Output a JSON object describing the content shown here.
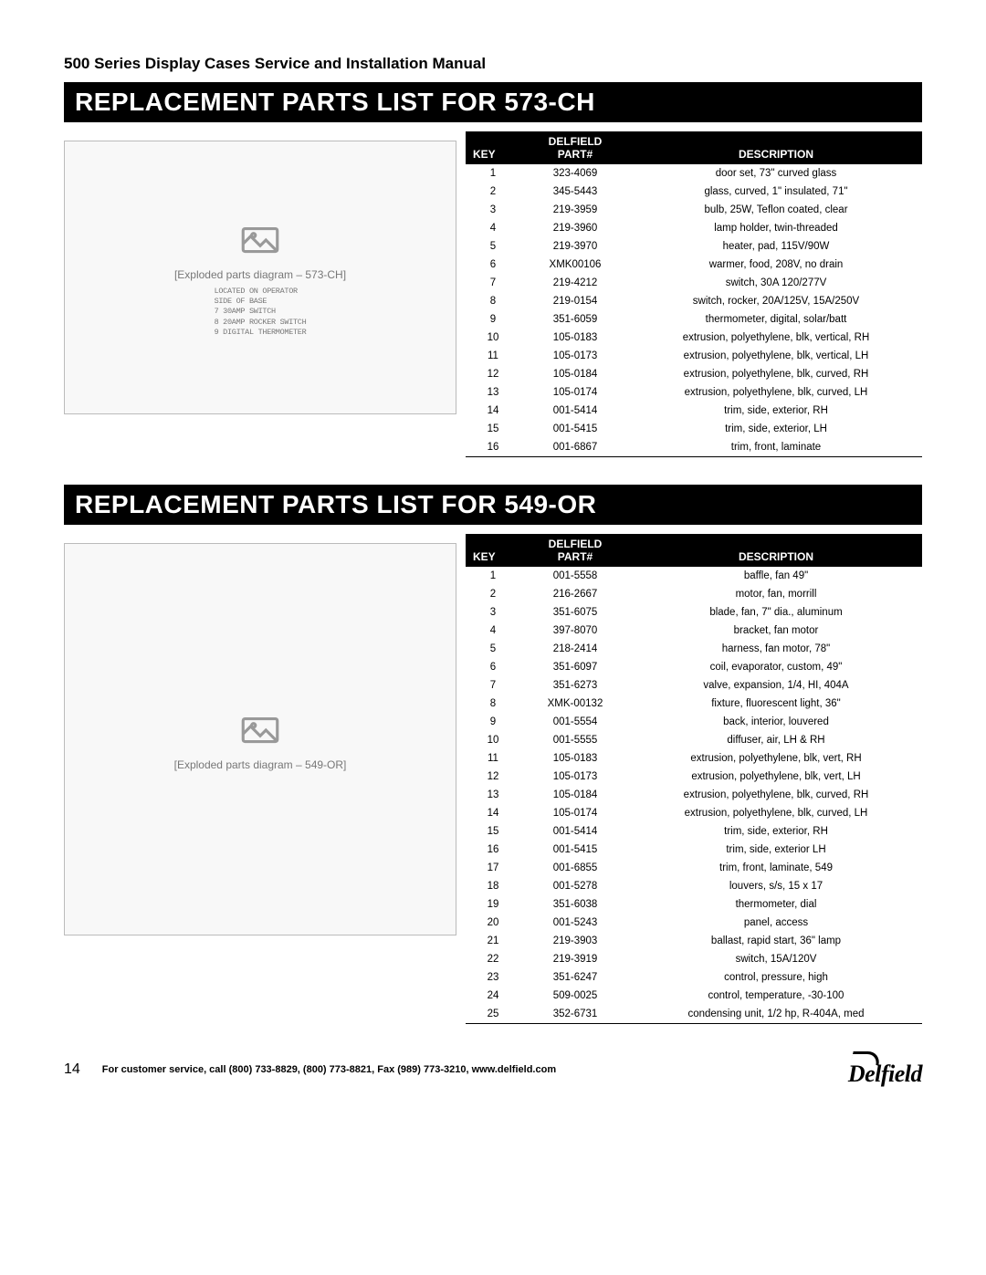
{
  "manual_title": "500 Series Display Cases Service and Installation Manual",
  "sections": [
    {
      "banner": "REPLACEMENT PARTS LIST FOR 573-CH",
      "diagram_height": 300,
      "diagram_caption": "[Exploded parts diagram – 573-CH]",
      "diagram_notes": [
        "LOCATED ON OPERATOR",
        "SIDE OF BASE",
        "7 30AMP SWITCH",
        "8 20AMP ROCKER SWITCH",
        "9 DIGITAL THERMOMETER"
      ],
      "header": {
        "brand": "DELFIELD",
        "c1": "KEY",
        "c2": "PART#",
        "c3": "DESCRIPTION"
      },
      "rows": [
        {
          "k": "1",
          "p": "323-4069",
          "d": "door set, 73\" curved glass"
        },
        {
          "k": "2",
          "p": "345-5443",
          "d": "glass, curved, 1\" insulated, 71\""
        },
        {
          "k": "3",
          "p": "219-3959",
          "d": "bulb, 25W, Teflon coated, clear"
        },
        {
          "k": "4",
          "p": "219-3960",
          "d": "lamp holder, twin-threaded"
        },
        {
          "k": "5",
          "p": "219-3970",
          "d": "heater, pad, 115V/90W"
        },
        {
          "k": "6",
          "p": "XMK00106",
          "d": "warmer, food, 208V, no drain"
        },
        {
          "k": "7",
          "p": "219-4212",
          "d": "switch, 30A 120/277V"
        },
        {
          "k": "8",
          "p": "219-0154",
          "d": "switch, rocker, 20A/125V, 15A/250V"
        },
        {
          "k": "9",
          "p": "351-6059",
          "d": "thermometer, digital, solar/batt"
        },
        {
          "k": "10",
          "p": "105-0183",
          "d": "extrusion, polyethylene, blk, vertical, RH"
        },
        {
          "k": "11",
          "p": "105-0173",
          "d": "extrusion, polyethylene, blk, vertical, LH"
        },
        {
          "k": "12",
          "p": "105-0184",
          "d": "extrusion, polyethylene, blk, curved, RH"
        },
        {
          "k": "13",
          "p": "105-0174",
          "d": "extrusion, polyethylene, blk, curved, LH"
        },
        {
          "k": "14",
          "p": "001-5414",
          "d": "trim, side, exterior, RH"
        },
        {
          "k": "15",
          "p": "001-5415",
          "d": "trim, side, exterior, LH"
        },
        {
          "k": "16",
          "p": "001-6867",
          "d": "trim, front, laminate"
        }
      ]
    },
    {
      "banner": "REPLACEMENT PARTS LIST FOR 549-OR",
      "diagram_height": 430,
      "diagram_caption": "[Exploded parts diagram – 549-OR]",
      "diagram_notes": [],
      "header": {
        "brand": "DELFIELD",
        "c1": "KEY",
        "c2": "PART#",
        "c3": "DESCRIPTION"
      },
      "rows": [
        {
          "k": "1",
          "p": "001-5558",
          "d": "baffle, fan 49\""
        },
        {
          "k": "2",
          "p": "216-2667",
          "d": "motor, fan, morrill"
        },
        {
          "k": "3",
          "p": "351-6075",
          "d": "blade, fan, 7\" dia., aluminum"
        },
        {
          "k": "4",
          "p": "397-8070",
          "d": "bracket, fan motor"
        },
        {
          "k": "5",
          "p": "218-2414",
          "d": "harness, fan motor, 78\""
        },
        {
          "k": "6",
          "p": "351-6097",
          "d": "coil, evaporator, custom, 49\""
        },
        {
          "k": "7",
          "p": "351-6273",
          "d": "valve, expansion, 1/4, HI, 404A"
        },
        {
          "k": "8",
          "p": "XMK-00132",
          "d": "fixture, fluorescent light, 36\""
        },
        {
          "k": "9",
          "p": "001-5554",
          "d": "back, interior, louvered"
        },
        {
          "k": "10",
          "p": "001-5555",
          "d": "diffuser, air, LH & RH"
        },
        {
          "k": "11",
          "p": "105-0183",
          "d": "extrusion, polyethylene, blk, vert, RH"
        },
        {
          "k": "12",
          "p": "105-0173",
          "d": "extrusion, polyethylene, blk, vert, LH"
        },
        {
          "k": "13",
          "p": "105-0184",
          "d": "extrusion, polyethylene, blk, curved, RH"
        },
        {
          "k": "14",
          "p": "105-0174",
          "d": "extrusion, polyethylene, blk, curved, LH"
        },
        {
          "k": "15",
          "p": "001-5414",
          "d": "trim, side, exterior, RH"
        },
        {
          "k": "16",
          "p": "001-5415",
          "d": "trim, side, exterior LH"
        },
        {
          "k": "17",
          "p": "001-6855",
          "d": "trim, front, laminate, 549"
        },
        {
          "k": "18",
          "p": "001-5278",
          "d": "louvers, s/s, 15 x 17"
        },
        {
          "k": "19",
          "p": "351-6038",
          "d": "thermometer, dial"
        },
        {
          "k": "20",
          "p": "001-5243",
          "d": "panel, access"
        },
        {
          "k": "21",
          "p": "219-3903",
          "d": "ballast, rapid start, 36\" lamp"
        },
        {
          "k": "22",
          "p": "219-3919",
          "d": "switch, 15A/120V"
        },
        {
          "k": "23",
          "p": "351-6247",
          "d": "control, pressure, high"
        },
        {
          "k": "24",
          "p": "509-0025",
          "d": "control, temperature, -30-100"
        },
        {
          "k": "25",
          "p": "352-6731",
          "d": "condensing unit, 1/2 hp, R-404A, med"
        }
      ]
    }
  ],
  "footer": {
    "page": "14",
    "text": "For customer service, call (800) 733-8829, (800) 773-8821, Fax (989) 773-3210, www.delfield.com",
    "logo": "Delfield"
  },
  "colors": {
    "banner_bg": "#000000",
    "banner_fg": "#ffffff",
    "text": "#000000"
  }
}
